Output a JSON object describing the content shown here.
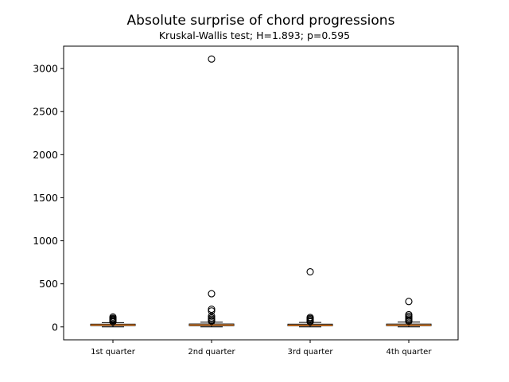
{
  "chart_data": {
    "type": "box",
    "title": "Absolute surprise of chord progressions",
    "subtitle": "Kruskal-Wallis test; H=1.893; p=0.595",
    "xlabel": "",
    "ylabel": "",
    "ylim": [
      -150,
      3260
    ],
    "yticks": [
      0,
      500,
      1000,
      1500,
      2000,
      2500,
      3000
    ],
    "categories": [
      "1st quarter",
      "2nd quarter",
      "3rd quarter",
      "4th quarter"
    ],
    "boxes": [
      {
        "name": "1st quarter",
        "whisker_low": 0,
        "q1": 15,
        "median": 22,
        "q3": 32,
        "whisker_high": 50,
        "outliers": [
          60,
          70,
          80,
          90,
          100,
          115
        ]
      },
      {
        "name": "2nd quarter",
        "whisker_low": 0,
        "q1": 14,
        "median": 22,
        "q3": 34,
        "whisker_high": 55,
        "outliers": [
          65,
          75,
          90,
          105,
          125,
          185,
          205,
          385,
          3110
        ]
      },
      {
        "name": "3rd quarter",
        "whisker_low": 0,
        "q1": 13,
        "median": 20,
        "q3": 32,
        "whisker_high": 52,
        "outliers": [
          60,
          72,
          85,
          98,
          110,
          640
        ]
      },
      {
        "name": "4th quarter",
        "whisker_low": 0,
        "q1": 14,
        "median": 21,
        "q3": 33,
        "whisker_high": 56,
        "outliers": [
          65,
          78,
          92,
          108,
          125,
          142,
          295
        ]
      }
    ],
    "colors": {
      "median": "#ff7f0e",
      "box": "#000000",
      "outlier": "#000000"
    },
    "grid": false,
    "legend": "none"
  }
}
